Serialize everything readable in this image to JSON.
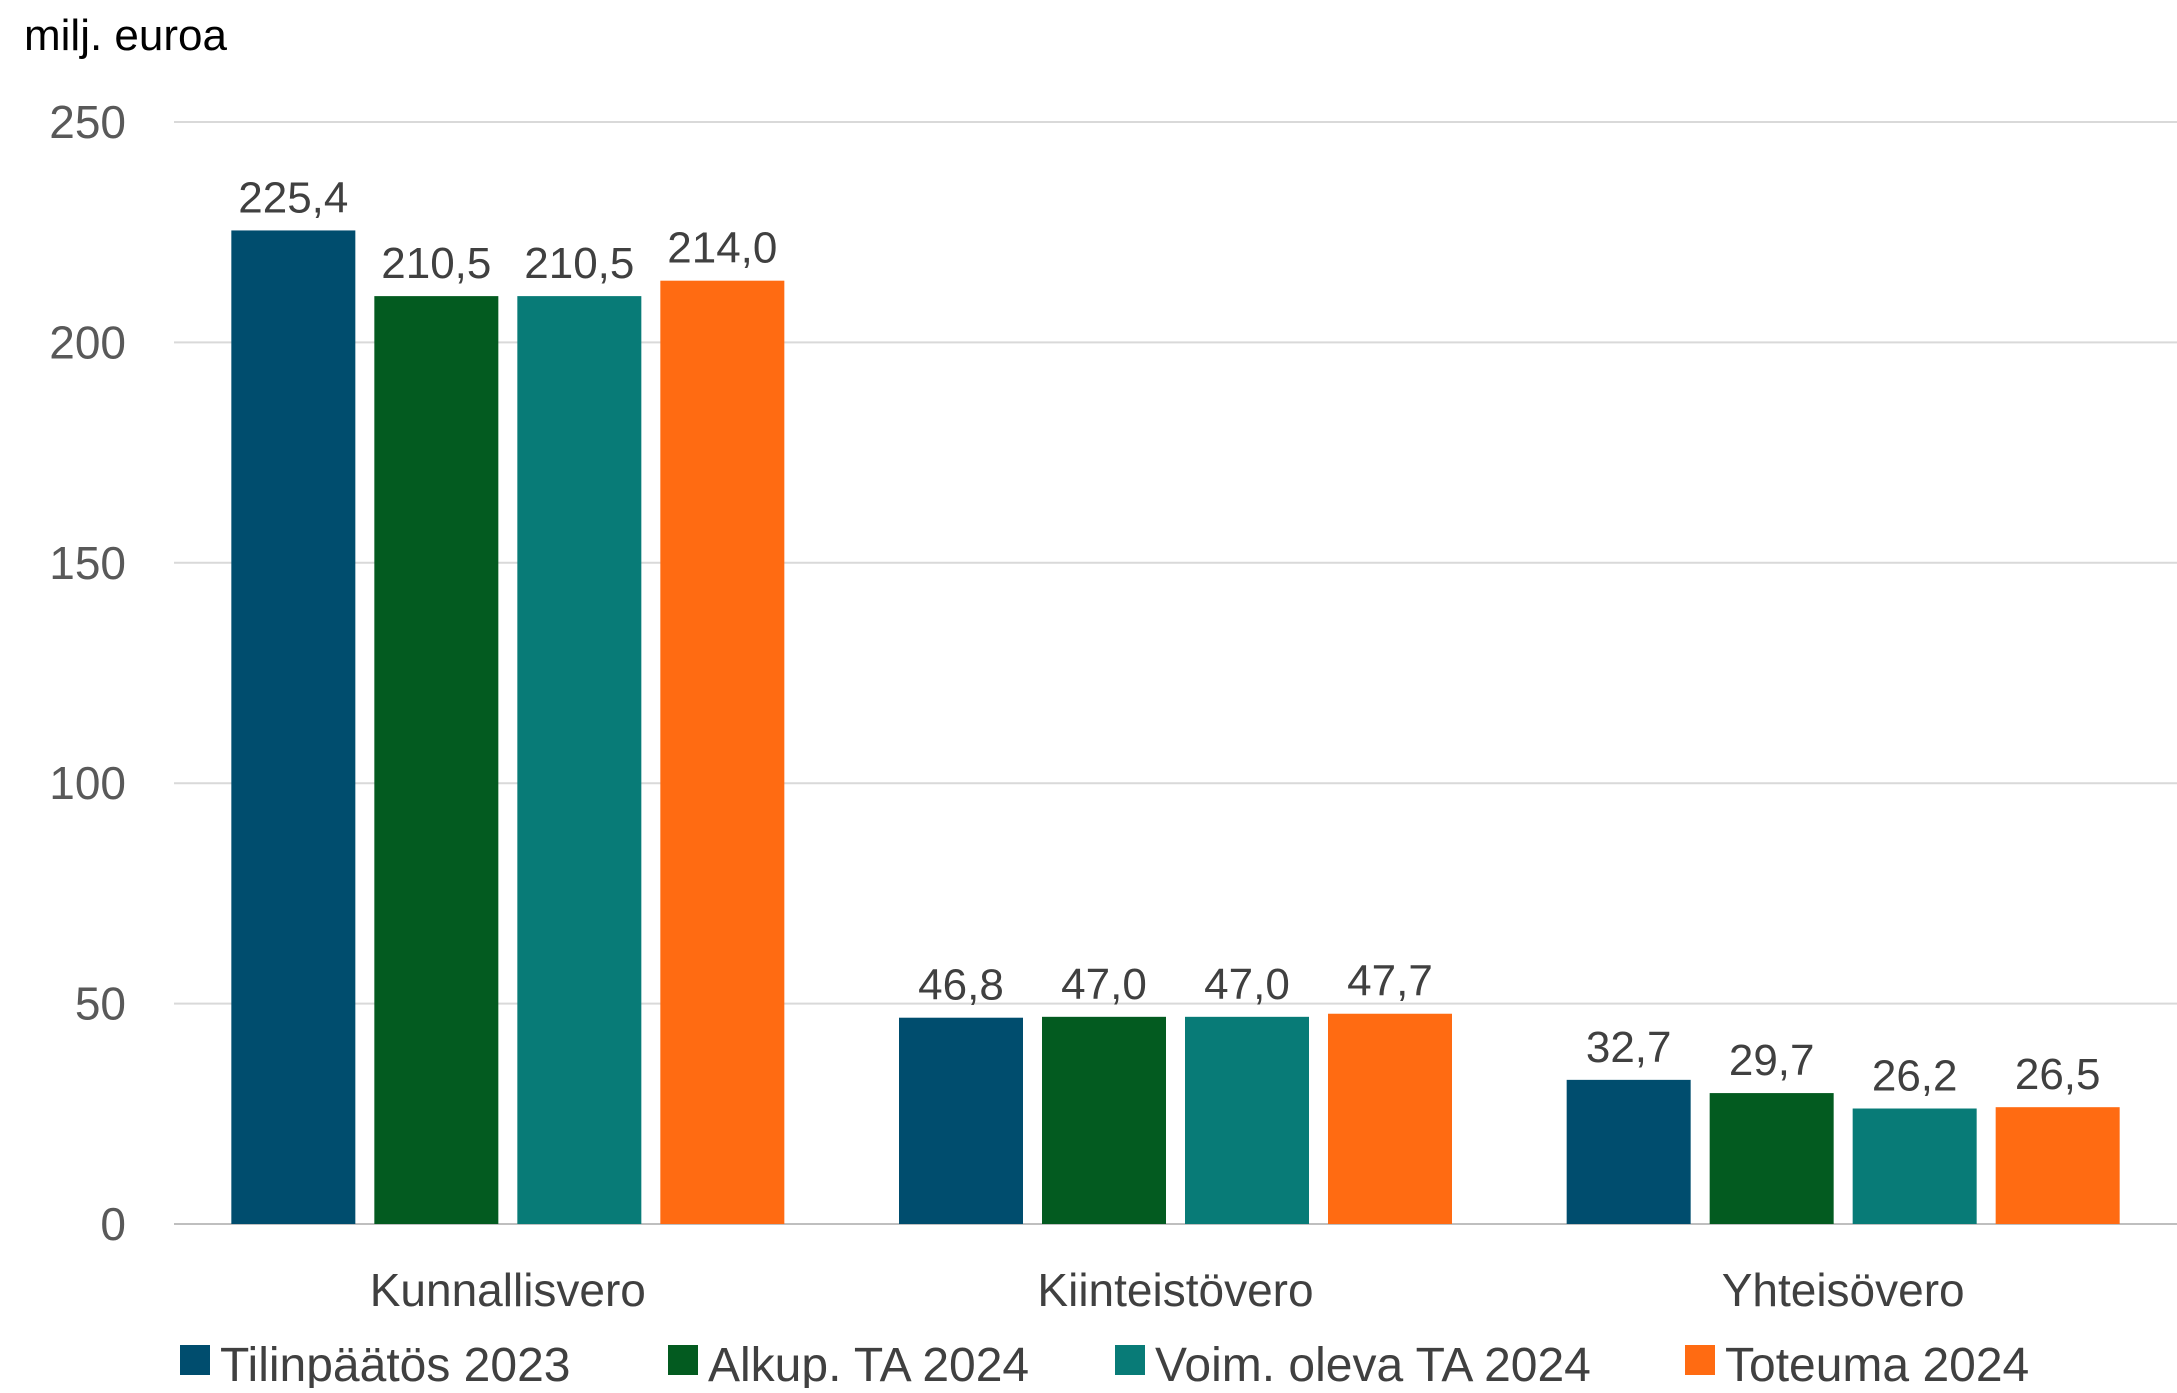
{
  "chart_data": {
    "type": "bar",
    "unit_label": "milj. euroa",
    "title": "",
    "xlabel": "",
    "ylabel": "",
    "ylim": [
      0,
      250
    ],
    "yticks": [
      0,
      50,
      100,
      150,
      200,
      250
    ],
    "grid": true,
    "legend_position": "bottom",
    "categories": [
      "Kunnallisvero",
      "Kiinteistövero",
      "Yhteisövero"
    ],
    "series": [
      {
        "name": "Tilinpäätös 2023",
        "color": "#004d6e",
        "values": [
          225.4,
          46.8,
          32.7
        ],
        "labels": [
          "225,4",
          "46,8",
          "32,7"
        ]
      },
      {
        "name": "Alkup. TA 2024",
        "color": "#035b20",
        "values": [
          210.5,
          47.0,
          29.7
        ],
        "labels": [
          "210,5",
          "47,0",
          "29,7"
        ]
      },
      {
        "name": "Voim. oleva TA 2024",
        "color": "#087b77",
        "values": [
          210.5,
          47.0,
          26.2
        ],
        "labels": [
          "210,5",
          "47,0",
          "26,2"
        ]
      },
      {
        "name": "Toteuma 2024",
        "color": "#ff6b12",
        "values": [
          214.0,
          47.7,
          26.5
        ],
        "labels": [
          "214,0",
          "47,7",
          "26,5"
        ]
      }
    ]
  }
}
